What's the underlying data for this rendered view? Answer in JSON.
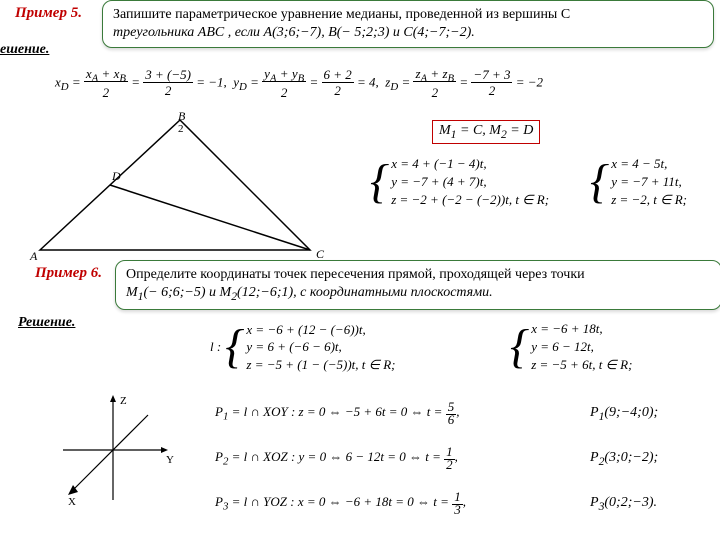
{
  "example5": {
    "label": "Пример 5.",
    "problem_line1": "Запишите параметрическое уравнение медианы, проведенной из вершины C",
    "problem_line2": "треугольника  ABC , если  A(3;6;−7),   B(− 5;2;3) и  C(4;−7;−2)."
  },
  "solution5_label": "ешение.",
  "mid_formula": {
    "xd": "x",
    "xd_sub": "D",
    "xd_expr": " =  (x_A + x_B)/2  =  (3 + (−5))/2  = −1,",
    "yd": " y",
    "yd_expr": " =  (y_A + y_B)/2  =  (6 + 2)/2  = 4,",
    "zd": " z",
    "zd_expr": " =  (z_A + z_B)/2  =  (−7 + 3)/2  = −2",
    "text": "x<sub>D</sub> = <span style='display:inline-block;vertical-align:middle;text-align:center'><span style='border-bottom:1px solid #000;padding:0 2px'>x<sub>A</sub> + x<sub>B</sub></span><br>2</span> = <span style='display:inline-block;vertical-align:middle;text-align:center'><span style='border-bottom:1px solid #000;padding:0 2px'>3 + (−5)</span><br>2</span> = −1, &nbsp;y<sub>D</sub> = <span style='display:inline-block;vertical-align:middle;text-align:center'><span style='border-bottom:1px solid #000;padding:0 2px'>y<sub>A</sub> + y<sub>B</sub></span><br>2</span> = <span style='display:inline-block;vertical-align:middle;text-align:center'><span style='border-bottom:1px solid #000;padding:0 2px'>6 + 2</span><br>2</span> = 4, &nbsp;z<sub>D</sub> = <span style='display:inline-block;vertical-align:middle;text-align:center'><span style='border-bottom:1px solid #000;padding:0 2px'>z<sub>A</sub> + z<sub>B</sub></span><br>2</span> = <span style='display:inline-block;vertical-align:middle;text-align:center'><span style='border-bottom:1px solid #000;padding:0 2px'>−7 + 3</span><br>2</span> = −2"
  },
  "m1m2_box": "M<sub>1</sub> = C,  M<sub>2</sub> = D",
  "param5_left": {
    "l1": "x = 4 + (−1 − 4)t,",
    "l2": "y = −7 + (4 + 7)t,",
    "l3": "z = −2 + (−2 − (−2))t, t ∈ R;"
  },
  "param5_right": {
    "l1": "x = 4 − 5t,",
    "l2": "y = −7 + 11t,",
    "l3": "z = −2, t ∈ R;"
  },
  "triangle": {
    "A": "A",
    "B": "B",
    "C": "C",
    "D": "D"
  },
  "example6": {
    "label": "Пример 6.",
    "problem_line1": "Определите координаты точек пересечения  прямой, проходящей через точки",
    "problem_line2": "M<sub>1</sub>(− 6;6;−5)  и  M<sub>2</sub>(12;−6;1),   с координатными плоскостями."
  },
  "solution6_label": "Решение.",
  "param6_left": {
    "prefix": "l :",
    "l1": "x = −6 + (12 − (−6))t,",
    "l2": "y = 6 + (−6 − 6)t,",
    "l3": "z = −5 + (1 − (−5))t, t ∈ R;"
  },
  "param6_right": {
    "l1": "x = −6 + 18t,",
    "l2": "y = 6 − 12t,",
    "l3": "z = −5 + 6t, t ∈ R;"
  },
  "P1_line": "P<sub>1</sub> = l ∩ XOY : z = 0 ⇔ −5 + 6t = 0 ⇔ t = <span style='display:inline-block;vertical-align:middle;text-align:center;line-height:1'><span style='border-bottom:1px solid #000;padding:0 2px'>5</span><br>6</span>,",
  "P1_ans": "P<sub>1</sub>(9;−4;0);",
  "P2_line": "P<sub>2</sub> = l ∩ XOZ : y = 0 ⇔ 6 − 12t = 0 ⇔ t = <span style='display:inline-block;vertical-align:middle;text-align:center;line-height:1'><span style='border-bottom:1px solid #000;padding:0 2px'>1</span><br>2</span>,",
  "P2_ans": "P<sub>2</sub>(3;0;−2);",
  "P3_line": "P<sub>3</sub> = l ∩ YOZ : x = 0 ⇔ −6 + 18t = 0 ⇔ t = <span style='display:inline-block;vertical-align:middle;text-align:center;line-height:1'><span style='border-bottom:1px solid #000;padding:0 2px'>1</span><br>3</span>,",
  "P3_ans": "P<sub>3</sub>(0;2;−3).",
  "axes": {
    "X": "X",
    "Y": "Y",
    "Z": "Z"
  },
  "colors": {
    "accent_red": "#c00000",
    "box_border": "#3a7a3a",
    "text": "#000000",
    "bg": "#ffffff"
  }
}
